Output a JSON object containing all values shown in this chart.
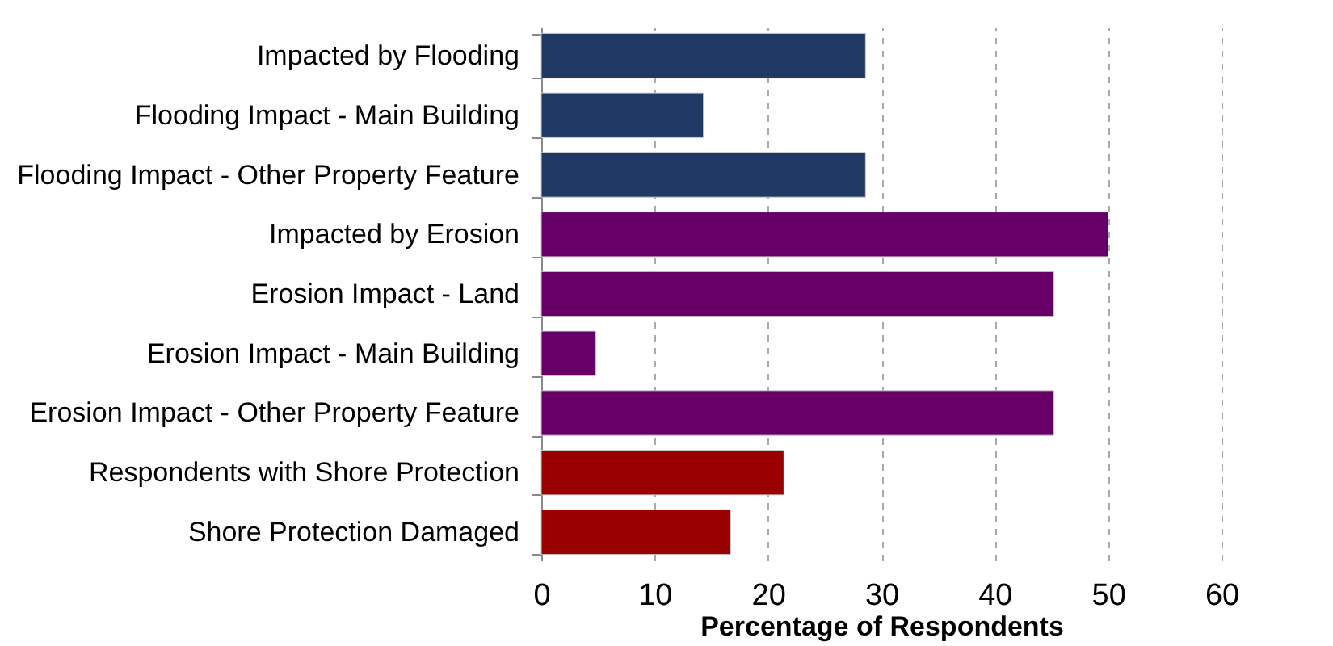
{
  "chart_data": {
    "type": "bar",
    "orientation": "horizontal",
    "xlabel": "Percentage of Respondents",
    "categories": [
      "Impacted by Flooding",
      "Flooding Impact - Main Building",
      "Flooding Impact - Other Property Feature",
      "Impacted by Erosion",
      "Erosion Impact - Land",
      "Erosion Impact - Main Building",
      "Erosion Impact - Other Property Feature",
      "Respondents with Shore Protection",
      "Shore Protection Damaged"
    ],
    "values": [
      28.6,
      14.3,
      28.6,
      50,
      45.2,
      4.8,
      45.2,
      21.4,
      16.7
    ],
    "colors": [
      "#203864",
      "#203864",
      "#203864",
      "#660066",
      "#660066",
      "#660066",
      "#660066",
      "#990000",
      "#990000"
    ],
    "xlim": [
      0,
      60
    ],
    "xticks": [
      0,
      10,
      20,
      30,
      40,
      50,
      60
    ],
    "grid": "x",
    "line_style": "dashed"
  }
}
